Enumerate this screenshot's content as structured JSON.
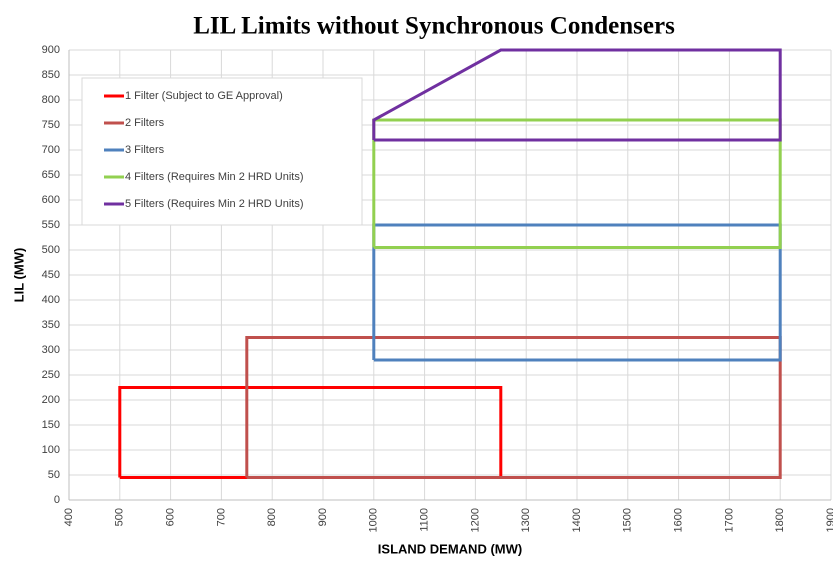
{
  "chart_data": {
    "type": "line",
    "title": "LIL Limits without Synchronous Condensers",
    "x_label": "ISLAND DEMAND (MW)",
    "y_label": "LIL (MW)",
    "xlim": [
      400,
      1900
    ],
    "xticks": [
      400,
      500,
      600,
      700,
      800,
      900,
      1000,
      1100,
      1200,
      1300,
      1400,
      1500,
      1600,
      1700,
      1800,
      1900
    ],
    "ylim": [
      0,
      900
    ],
    "yticks": [
      0,
      50,
      100,
      150,
      200,
      250,
      300,
      350,
      400,
      450,
      500,
      550,
      600,
      650,
      700,
      750,
      800,
      850,
      900
    ],
    "grid": true,
    "legend": "upper left",
    "series": [
      {
        "name": "1 Filter (Subject to GE Approval)",
        "color": "#ff0000",
        "x": [
          500,
          500,
          1250,
          1250,
          500
        ],
        "values": [
          45,
          225,
          225,
          45,
          45
        ]
      },
      {
        "name": "2 Filters",
        "color": "#c0504d",
        "x": [
          750,
          750,
          1800,
          1800,
          750
        ],
        "values": [
          45,
          325,
          325,
          45,
          45
        ]
      },
      {
        "name": "3 Filters",
        "color": "#4f81bd",
        "x": [
          1000,
          1000,
          1800,
          1800,
          1000
        ],
        "values": [
          280,
          550,
          550,
          280,
          280
        ]
      },
      {
        "name": "4 Filters (Requires Min 2 HRD Units)",
        "color": "#92d050",
        "x": [
          1000,
          1000,
          1800,
          1800,
          1000
        ],
        "values": [
          505,
          760,
          760,
          505,
          505
        ]
      },
      {
        "name": "5 Filters (Requires Min 2 HRD Units)",
        "color": "#7030a0",
        "x": [
          1000,
          1000,
          1250,
          1800,
          1800,
          1000
        ],
        "values": [
          720,
          760,
          900,
          900,
          720,
          720
        ]
      }
    ]
  }
}
